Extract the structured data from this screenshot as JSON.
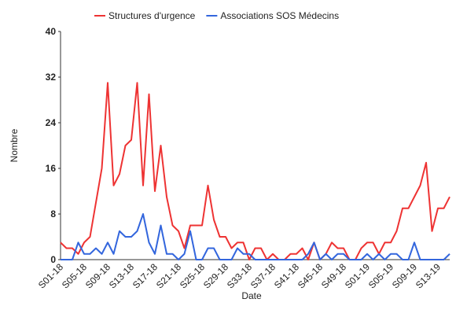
{
  "chart_data": {
    "type": "line",
    "x_label": "Date",
    "y_label": "Nombre",
    "categories": [
      "S01-18",
      null,
      null,
      null,
      "S05-18",
      null,
      null,
      null,
      "S09-18",
      null,
      null,
      null,
      "S13-18",
      null,
      null,
      null,
      "S17-18",
      null,
      null,
      null,
      "S21-18",
      null,
      null,
      null,
      "S25-18",
      null,
      null,
      null,
      "S29-18",
      null,
      null,
      null,
      "S33-18",
      null,
      null,
      null,
      "S37-18",
      null,
      null,
      null,
      "S41-18",
      null,
      null,
      null,
      "S45-18",
      null,
      null,
      null,
      "S49-18",
      null,
      null,
      null,
      "S01-19",
      null,
      null,
      null,
      "S05-19",
      null,
      null,
      null,
      "S09-19",
      null,
      null,
      null,
      "S13-19",
      null,
      null
    ],
    "series": [
      {
        "name": "Structures d'urgence",
        "color": "#ee3333",
        "values": [
          3,
          2,
          2,
          1,
          3,
          4,
          10,
          16,
          31,
          13,
          15,
          20,
          21,
          31,
          13,
          29,
          12,
          20,
          11,
          6,
          5,
          2,
          6,
          6,
          6,
          13,
          7,
          4,
          4,
          2,
          3,
          3,
          0,
          2,
          2,
          0,
          1,
          0,
          0,
          1,
          1,
          2,
          0,
          3,
          0,
          1,
          3,
          2,
          2,
          0,
          0,
          2,
          3,
          3,
          1,
          3,
          3,
          5,
          9,
          9,
          11,
          13,
          17,
          5,
          9,
          9,
          11
        ]
      },
      {
        "name": "Associations SOS Médecins",
        "color": "#3366dd",
        "values": [
          0,
          0,
          0,
          3,
          1,
          1,
          2,
          1,
          3,
          1,
          5,
          4,
          4,
          5,
          8,
          3,
          1,
          6,
          1,
          1,
          0,
          1,
          5,
          0,
          0,
          2,
          2,
          0,
          0,
          0,
          2,
          1,
          1,
          0,
          0,
          0,
          0,
          0,
          0,
          0,
          0,
          0,
          1,
          3,
          0,
          1,
          0,
          1,
          1,
          0,
          0,
          0,
          1,
          0,
          1,
          0,
          1,
          1,
          0,
          0,
          3,
          0,
          0,
          0,
          0,
          0,
          1
        ]
      }
    ],
    "ylim": [
      0,
      40
    ],
    "yticks": [
      0,
      8,
      16,
      24,
      32,
      40
    ],
    "legend": "top"
  }
}
